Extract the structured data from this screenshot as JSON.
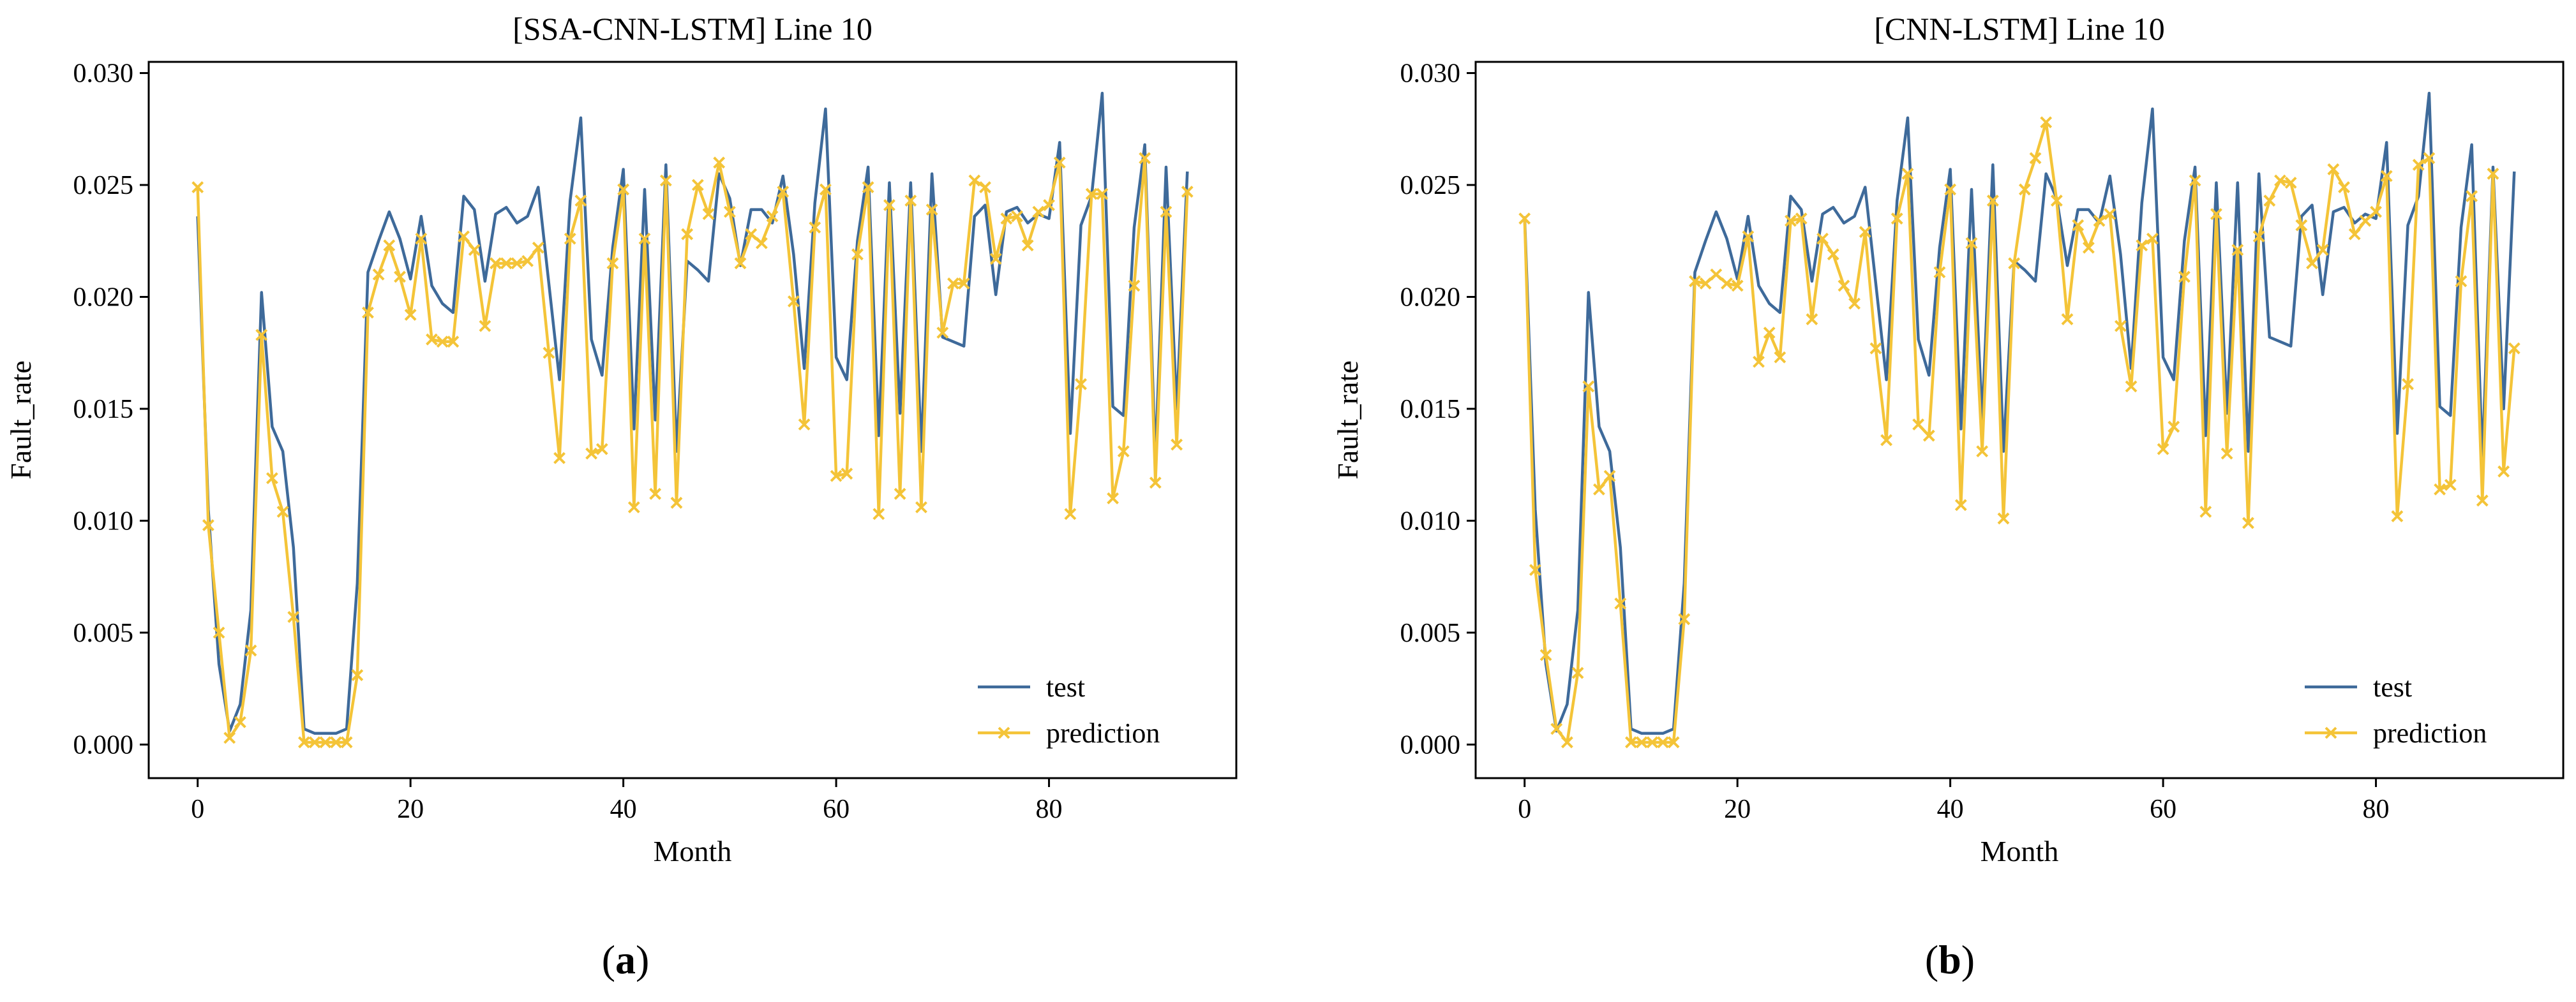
{
  "figure": {
    "panel_labels": [
      {
        "open": "(",
        "letter": "a",
        "close": ")"
      },
      {
        "open": "(",
        "letter": "b",
        "close": ")"
      }
    ]
  },
  "chart_data": [
    {
      "type": "line",
      "title": "[SSA-CNN-LSTM] Line 10",
      "xlabel": "Month",
      "ylabel": "Fault_rate",
      "xlim": [
        -4.6,
        97.6
      ],
      "ylim": [
        -0.0015,
        0.0305
      ],
      "xticks": [
        0,
        20,
        40,
        60,
        80
      ],
      "xtick_labels": [
        "0",
        "20",
        "40",
        "60",
        "80"
      ],
      "yticks": [
        0.0,
        0.005,
        0.01,
        0.015,
        0.02,
        0.025,
        0.03
      ],
      "ytick_labels": [
        "0.000",
        "0.005",
        "0.010",
        "0.015",
        "0.020",
        "0.025",
        "0.030"
      ],
      "legend": {
        "location": "lower-right",
        "entries": [
          "test",
          "prediction"
        ]
      },
      "colors": {
        "test": "#3e6a9a",
        "prediction": "#f4c438"
      },
      "series": [
        {
          "name": "test",
          "marker": "none",
          "values": [
            0.0236,
            0.0105,
            0.0036,
            0.0006,
            0.0018,
            0.006,
            0.0202,
            0.0142,
            0.0131,
            0.0088,
            0.0007,
            0.0005,
            0.0005,
            0.0005,
            0.0007,
            0.0072,
            0.0211,
            0.0225,
            0.0238,
            0.0226,
            0.0208,
            0.0236,
            0.0205,
            0.0197,
            0.0193,
            0.0245,
            0.0239,
            0.0207,
            0.0237,
            0.024,
            0.0233,
            0.0236,
            0.0249,
            0.0206,
            0.0163,
            0.0243,
            0.028,
            0.0181,
            0.0165,
            0.0222,
            0.0257,
            0.0141,
            0.0248,
            0.0145,
            0.0259,
            0.0131,
            0.0216,
            0.0212,
            0.0207,
            0.0255,
            0.0244,
            0.0214,
            0.0239,
            0.0239,
            0.0233,
            0.0254,
            0.0219,
            0.0168,
            0.0242,
            0.0284,
            0.0173,
            0.0163,
            0.0225,
            0.0258,
            0.0138,
            0.0251,
            0.0148,
            0.0251,
            0.0131,
            0.0255,
            0.0182,
            0.018,
            0.0178,
            0.0236,
            0.0241,
            0.0201,
            0.0238,
            0.024,
            0.0233,
            0.0237,
            0.0235,
            0.0269,
            0.0139,
            0.0232,
            0.0245,
            0.0291,
            0.0151,
            0.0147,
            0.0231,
            0.0268,
            0.0127,
            0.0258,
            0.015,
            0.0256
          ]
        },
        {
          "name": "prediction",
          "marker": "x",
          "values": [
            0.0249,
            0.0098,
            0.005,
            0.0003,
            0.001,
            0.0042,
            0.0183,
            0.0119,
            0.0104,
            0.0057,
            0.0001,
            0.0001,
            0.0001,
            0.0001,
            0.0001,
            0.0031,
            0.0193,
            0.021,
            0.0223,
            0.0209,
            0.0192,
            0.0226,
            0.0181,
            0.018,
            0.018,
            0.0227,
            0.0221,
            0.0187,
            0.0215,
            0.0215,
            0.0215,
            0.0216,
            0.0222,
            0.0175,
            0.0128,
            0.0226,
            0.0243,
            0.013,
            0.0132,
            0.0215,
            0.0248,
            0.0106,
            0.0226,
            0.0112,
            0.0252,
            0.0108,
            0.0228,
            0.025,
            0.0237,
            0.026,
            0.0238,
            0.0215,
            0.0228,
            0.0224,
            0.0236,
            0.0247,
            0.0198,
            0.0143,
            0.0231,
            0.0248,
            0.012,
            0.0121,
            0.0219,
            0.0249,
            0.0103,
            0.0241,
            0.0112,
            0.0243,
            0.0106,
            0.0239,
            0.0184,
            0.0206,
            0.0206,
            0.0252,
            0.0249,
            0.0217,
            0.0235,
            0.0236,
            0.0223,
            0.0238,
            0.0241,
            0.026,
            0.0103,
            0.0161,
            0.0246,
            0.0246,
            0.011,
            0.0131,
            0.0205,
            0.0262,
            0.0117,
            0.0238,
            0.0134,
            0.0247
          ]
        }
      ]
    },
    {
      "type": "line",
      "title": "[CNN-LSTM] Line 10",
      "xlabel": "Month",
      "ylabel": "Fault_rate",
      "xlim": [
        -4.6,
        97.6
      ],
      "ylim": [
        -0.0015,
        0.0305
      ],
      "xticks": [
        0,
        20,
        40,
        60,
        80
      ],
      "xtick_labels": [
        "0",
        "20",
        "40",
        "60",
        "80"
      ],
      "yticks": [
        0.0,
        0.005,
        0.01,
        0.015,
        0.02,
        0.025,
        0.03
      ],
      "ytick_labels": [
        "0.000",
        "0.005",
        "0.010",
        "0.015",
        "0.020",
        "0.025",
        "0.030"
      ],
      "legend": {
        "location": "lower-right",
        "entries": [
          "test",
          "prediction"
        ]
      },
      "colors": {
        "test": "#3e6a9a",
        "prediction": "#f4c438"
      },
      "series": [
        {
          "name": "test",
          "marker": "none",
          "values": [
            0.0236,
            0.0105,
            0.0036,
            0.0006,
            0.0018,
            0.006,
            0.0202,
            0.0142,
            0.0131,
            0.0088,
            0.0007,
            0.0005,
            0.0005,
            0.0005,
            0.0007,
            0.0072,
            0.0211,
            0.0225,
            0.0238,
            0.0226,
            0.0208,
            0.0236,
            0.0205,
            0.0197,
            0.0193,
            0.0245,
            0.0239,
            0.0207,
            0.0237,
            0.024,
            0.0233,
            0.0236,
            0.0249,
            0.0206,
            0.0163,
            0.0243,
            0.028,
            0.0181,
            0.0165,
            0.0222,
            0.0257,
            0.0141,
            0.0248,
            0.0145,
            0.0259,
            0.0131,
            0.0216,
            0.0212,
            0.0207,
            0.0255,
            0.0244,
            0.0214,
            0.0239,
            0.0239,
            0.0233,
            0.0254,
            0.0219,
            0.0168,
            0.0242,
            0.0284,
            0.0173,
            0.0163,
            0.0225,
            0.0258,
            0.0138,
            0.0251,
            0.0148,
            0.0251,
            0.0131,
            0.0255,
            0.0182,
            0.018,
            0.0178,
            0.0236,
            0.0241,
            0.0201,
            0.0238,
            0.024,
            0.0233,
            0.0237,
            0.0235,
            0.0269,
            0.0139,
            0.0232,
            0.0245,
            0.0291,
            0.0151,
            0.0147,
            0.0231,
            0.0268,
            0.0127,
            0.0258,
            0.015,
            0.0256
          ]
        },
        {
          "name": "prediction",
          "marker": "x",
          "values": [
            0.0235,
            0.0078,
            0.004,
            0.0007,
            0.0001,
            0.0032,
            0.016,
            0.0114,
            0.012,
            0.0063,
            0.0001,
            0.0001,
            0.0001,
            0.0001,
            0.0001,
            0.0056,
            0.0207,
            0.0206,
            0.021,
            0.0206,
            0.0205,
            0.0227,
            0.0171,
            0.0184,
            0.0173,
            0.0234,
            0.0235,
            0.019,
            0.0226,
            0.0219,
            0.0205,
            0.0197,
            0.0229,
            0.0177,
            0.0136,
            0.0235,
            0.0255,
            0.0143,
            0.0138,
            0.0211,
            0.0248,
            0.0107,
            0.0224,
            0.0131,
            0.0243,
            0.0101,
            0.0215,
            0.0248,
            0.0262,
            0.0278,
            0.0243,
            0.019,
            0.0232,
            0.0222,
            0.0234,
            0.0237,
            0.0187,
            0.016,
            0.0223,
            0.0226,
            0.0132,
            0.0142,
            0.0209,
            0.0252,
            0.0104,
            0.0237,
            0.013,
            0.0221,
            0.0099,
            0.0227,
            0.0243,
            0.0252,
            0.0251,
            0.0232,
            0.0215,
            0.0221,
            0.0257,
            0.0249,
            0.0228,
            0.0234,
            0.0238,
            0.0254,
            0.0102,
            0.0161,
            0.0259,
            0.0262,
            0.0114,
            0.0116,
            0.0207,
            0.0245,
            0.0109,
            0.0255,
            0.0122,
            0.0177
          ]
        }
      ]
    }
  ]
}
